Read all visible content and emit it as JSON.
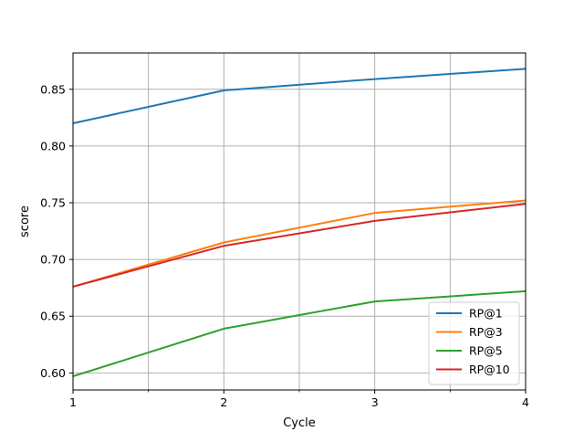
{
  "chart_data": {
    "type": "line",
    "title": "",
    "xlabel": "Cycle",
    "ylabel": "score",
    "x": [
      1,
      2,
      3,
      4
    ],
    "xlim": [
      1,
      4
    ],
    "ylim": [
      0.585,
      0.882
    ],
    "x_major_ticks": [
      1,
      2,
      3,
      4
    ],
    "x_minor_ticks": [
      1.5,
      2.5,
      3.5
    ],
    "x_tick_labels": [
      "1",
      "2",
      "3",
      "4"
    ],
    "y_ticks": [
      0.6,
      0.65,
      0.7,
      0.75,
      0.8,
      0.85
    ],
    "y_tick_labels": [
      "0.60",
      "0.65",
      "0.70",
      "0.75",
      "0.80",
      "0.85"
    ],
    "grid": true,
    "legend_position": "lower-right",
    "series": [
      {
        "name": "RP@1",
        "color": "#1f77b4",
        "values": [
          0.82,
          0.849,
          0.859,
          0.868
        ]
      },
      {
        "name": "RP@3",
        "color": "#ff7f0e",
        "values": [
          0.676,
          0.715,
          0.741,
          0.752
        ]
      },
      {
        "name": "RP@5",
        "color": "#2ca02c",
        "values": [
          0.597,
          0.639,
          0.663,
          0.672
        ]
      },
      {
        "name": "RP@10",
        "color": "#d62728",
        "values": [
          0.676,
          0.712,
          0.734,
          0.749
        ]
      }
    ]
  }
}
